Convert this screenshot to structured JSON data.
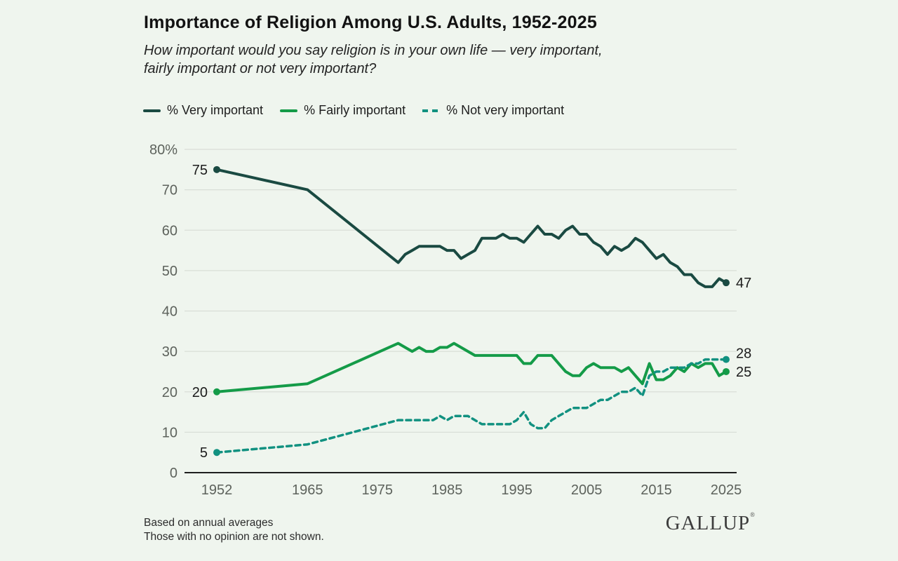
{
  "page": {
    "background": "#eff5ee"
  },
  "header": {
    "title": "Importance of Religion Among U.S. Adults, 1952-2025",
    "subtitle_lines": [
      "How important would you say religion is in your own life — very important,",
      "fairly important or not very important?"
    ]
  },
  "footer": {
    "note_lines": [
      "Based on annual averages",
      "Those with no opinion are not shown."
    ],
    "brand": "GALLUP",
    "brand_mark": "®"
  },
  "chart_data": {
    "type": "line",
    "title": "Importance of Religion Among U.S. Adults, 1952-2025",
    "xlabel": "",
    "ylabel": "",
    "x_range": [
      1952,
      2025
    ],
    "ylim": [
      0,
      80
    ],
    "grid": true,
    "legend_position": "top-left",
    "colors": {
      "background": "#eff5ee",
      "gridline": "#d9ded7",
      "axis_line": "#1f1f1f",
      "tick_label": "#5d625c",
      "annotation": "#1c1c1c"
    },
    "y_ticks": [
      {
        "v": 0,
        "label": "0"
      },
      {
        "v": 10,
        "label": "10"
      },
      {
        "v": 20,
        "label": "20"
      },
      {
        "v": 30,
        "label": "30"
      },
      {
        "v": 40,
        "label": "40"
      },
      {
        "v": 50,
        "label": "50"
      },
      {
        "v": 60,
        "label": "60"
      },
      {
        "v": 70,
        "label": "70"
      },
      {
        "v": 80,
        "label": "80%"
      }
    ],
    "x_ticks": [
      {
        "v": 1952,
        "label": "1952"
      },
      {
        "v": 1965,
        "label": "1965"
      },
      {
        "v": 1975,
        "label": "1975"
      },
      {
        "v": 1985,
        "label": "1985"
      },
      {
        "v": 1995,
        "label": "1995"
      },
      {
        "v": 2005,
        "label": "2005"
      },
      {
        "v": 2015,
        "label": "2015"
      },
      {
        "v": 2025,
        "label": "2025"
      }
    ],
    "series": [
      {
        "name": "very-important",
        "label": "% Very important",
        "color": "#1a4a42",
        "style": "solid",
        "start_label": "75",
        "end_label": "47",
        "points": [
          [
            1952,
            75
          ],
          [
            1965,
            70
          ],
          [
            1978,
            52
          ],
          [
            1979,
            54
          ],
          [
            1980,
            55
          ],
          [
            1981,
            56
          ],
          [
            1982,
            56
          ],
          [
            1983,
            56
          ],
          [
            1984,
            56
          ],
          [
            1985,
            55
          ],
          [
            1986,
            55
          ],
          [
            1987,
            53
          ],
          [
            1988,
            54
          ],
          [
            1989,
            55
          ],
          [
            1990,
            58
          ],
          [
            1991,
            58
          ],
          [
            1992,
            58
          ],
          [
            1993,
            59
          ],
          [
            1994,
            58
          ],
          [
            1995,
            58
          ],
          [
            1996,
            57
          ],
          [
            1997,
            59
          ],
          [
            1998,
            61
          ],
          [
            1999,
            59
          ],
          [
            2000,
            59
          ],
          [
            2001,
            58
          ],
          [
            2002,
            60
          ],
          [
            2003,
            61
          ],
          [
            2004,
            59
          ],
          [
            2005,
            59
          ],
          [
            2006,
            57
          ],
          [
            2007,
            56
          ],
          [
            2008,
            54
          ],
          [
            2009,
            56
          ],
          [
            2010,
            55
          ],
          [
            2011,
            56
          ],
          [
            2012,
            58
          ],
          [
            2013,
            57
          ],
          [
            2014,
            55
          ],
          [
            2015,
            53
          ],
          [
            2016,
            54
          ],
          [
            2017,
            52
          ],
          [
            2018,
            51
          ],
          [
            2019,
            49
          ],
          [
            2020,
            49
          ],
          [
            2021,
            47
          ],
          [
            2022,
            46
          ],
          [
            2023,
            46
          ],
          [
            2024,
            48
          ],
          [
            2025,
            47
          ]
        ]
      },
      {
        "name": "fairly-important",
        "label": "% Fairly important",
        "color": "#149b48",
        "style": "solid",
        "start_label": "20",
        "end_label": "25",
        "points": [
          [
            1952,
            20
          ],
          [
            1965,
            22
          ],
          [
            1978,
            32
          ],
          [
            1979,
            31
          ],
          [
            1980,
            30
          ],
          [
            1981,
            31
          ],
          [
            1982,
            30
          ],
          [
            1983,
            30
          ],
          [
            1984,
            31
          ],
          [
            1985,
            31
          ],
          [
            1986,
            32
          ],
          [
            1987,
            31
          ],
          [
            1988,
            30
          ],
          [
            1989,
            29
          ],
          [
            1990,
            29
          ],
          [
            1991,
            29
          ],
          [
            1992,
            29
          ],
          [
            1993,
            29
          ],
          [
            1994,
            29
          ],
          [
            1995,
            29
          ],
          [
            1996,
            27
          ],
          [
            1997,
            27
          ],
          [
            1998,
            29
          ],
          [
            1999,
            29
          ],
          [
            2000,
            29
          ],
          [
            2001,
            27
          ],
          [
            2002,
            25
          ],
          [
            2003,
            24
          ],
          [
            2004,
            24
          ],
          [
            2005,
            26
          ],
          [
            2006,
            27
          ],
          [
            2007,
            26
          ],
          [
            2008,
            26
          ],
          [
            2009,
            26
          ],
          [
            2010,
            25
          ],
          [
            2011,
            26
          ],
          [
            2012,
            24
          ],
          [
            2013,
            22
          ],
          [
            2014,
            27
          ],
          [
            2015,
            23
          ],
          [
            2016,
            23
          ],
          [
            2017,
            24
          ],
          [
            2018,
            26
          ],
          [
            2019,
            25
          ],
          [
            2020,
            27
          ],
          [
            2021,
            26
          ],
          [
            2022,
            27
          ],
          [
            2023,
            27
          ],
          [
            2024,
            24
          ],
          [
            2025,
            25
          ]
        ]
      },
      {
        "name": "not-very-important",
        "label": "% Not very important",
        "color": "#119180",
        "style": "dashed",
        "start_label": "5",
        "end_label": "28",
        "points": [
          [
            1952,
            5
          ],
          [
            1965,
            7
          ],
          [
            1978,
            13
          ],
          [
            1979,
            13
          ],
          [
            1980,
            13
          ],
          [
            1981,
            13
          ],
          [
            1982,
            13
          ],
          [
            1983,
            13
          ],
          [
            1984,
            14
          ],
          [
            1985,
            13
          ],
          [
            1986,
            14
          ],
          [
            1987,
            14
          ],
          [
            1988,
            14
          ],
          [
            1989,
            13
          ],
          [
            1990,
            12
          ],
          [
            1991,
            12
          ],
          [
            1992,
            12
          ],
          [
            1993,
            12
          ],
          [
            1994,
            12
          ],
          [
            1995,
            13
          ],
          [
            1996,
            15
          ],
          [
            1997,
            12
          ],
          [
            1998,
            11
          ],
          [
            1999,
            11
          ],
          [
            2000,
            13
          ],
          [
            2001,
            14
          ],
          [
            2002,
            15
          ],
          [
            2003,
            16
          ],
          [
            2004,
            16
          ],
          [
            2005,
            16
          ],
          [
            2006,
            17
          ],
          [
            2007,
            18
          ],
          [
            2008,
            18
          ],
          [
            2009,
            19
          ],
          [
            2010,
            20
          ],
          [
            2011,
            20
          ],
          [
            2012,
            21
          ],
          [
            2013,
            19
          ],
          [
            2014,
            24
          ],
          [
            2015,
            25
          ],
          [
            2016,
            25
          ],
          [
            2017,
            26
          ],
          [
            2018,
            26
          ],
          [
            2019,
            26
          ],
          [
            2020,
            27
          ],
          [
            2021,
            27
          ],
          [
            2022,
            28
          ],
          [
            2023,
            28
          ],
          [
            2024,
            28
          ],
          [
            2025,
            28
          ]
        ]
      }
    ]
  }
}
